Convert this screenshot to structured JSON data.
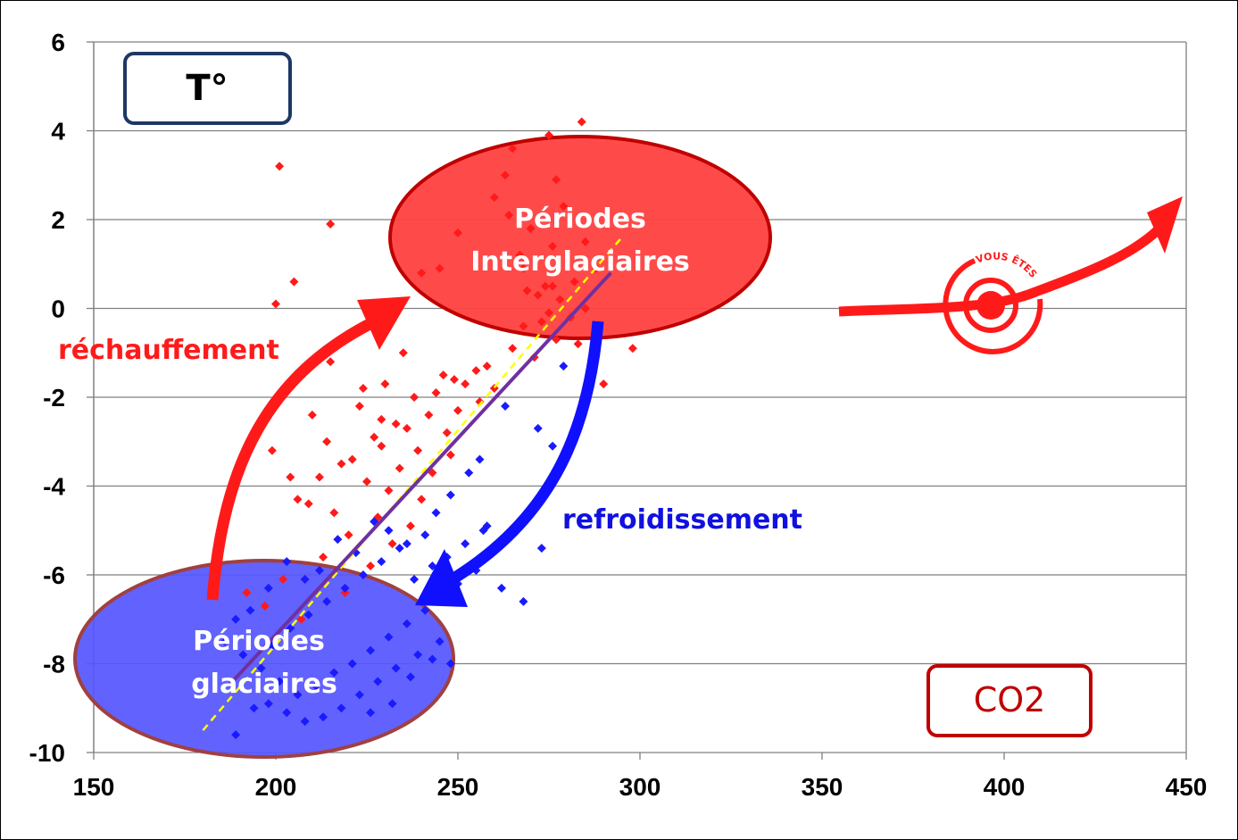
{
  "chart_data": {
    "type": "scatter",
    "xlim": [
      150,
      450
    ],
    "ylim": [
      -10,
      6
    ],
    "x_ticks": [
      "150",
      "200",
      "250",
      "300",
      "350",
      "400",
      "450"
    ],
    "y_ticks": [
      "6",
      "4",
      "2",
      "0",
      "-2",
      "-4",
      "-6",
      "-8",
      "-10"
    ],
    "grid": true,
    "colors": {
      "warming": "#ff1a1a",
      "cooling": "#1a1aff",
      "trend": "#7030a0",
      "fit": "#ffff00"
    },
    "series": [
      {
        "color": "#ff1a1a",
        "points": [
          [
            284,
            4.2
          ],
          [
            275,
            3.9
          ],
          [
            265,
            3.6
          ],
          [
            201,
            3.2
          ],
          [
            263,
            3.0
          ],
          [
            277,
            2.9
          ],
          [
            260,
            2.5
          ],
          [
            279,
            2.3
          ],
          [
            215,
            1.9
          ],
          [
            264,
            2.1
          ],
          [
            270,
            1.8
          ],
          [
            285,
            1.5
          ],
          [
            276,
            1.4
          ],
          [
            250,
            1.7
          ],
          [
            267,
            1.2
          ],
          [
            268,
            0.9
          ],
          [
            288,
            0.9
          ],
          [
            282,
            0.6
          ],
          [
            276,
            0.5
          ],
          [
            205,
            0.6
          ],
          [
            269,
            0.4
          ],
          [
            272,
            0.3
          ],
          [
            274,
            0.5
          ],
          [
            278,
            0.2
          ],
          [
            285,
            0.0
          ],
          [
            200,
            0.1
          ],
          [
            275,
            -0.1
          ],
          [
            281,
            -0.2
          ],
          [
            273,
            -0.3
          ],
          [
            268,
            -0.4
          ],
          [
            288,
            -0.6
          ],
          [
            298,
            -0.9
          ],
          [
            283,
            -0.8
          ],
          [
            277,
            -0.7
          ],
          [
            265,
            -0.9
          ],
          [
            271,
            -1.1
          ],
          [
            258,
            -1.3
          ],
          [
            255,
            -1.4
          ],
          [
            246,
            -1.5
          ],
          [
            249,
            -1.6
          ],
          [
            252,
            -1.7
          ],
          [
            290,
            -1.7
          ],
          [
            260,
            -1.8
          ],
          [
            244,
            -1.9
          ],
          [
            238,
            -2.0
          ],
          [
            256,
            -2.1
          ],
          [
            250,
            -2.3
          ],
          [
            242,
            -2.4
          ],
          [
            233,
            -2.6
          ],
          [
            236,
            -2.7
          ],
          [
            247,
            -2.8
          ],
          [
            227,
            -2.9
          ],
          [
            229,
            -3.1
          ],
          [
            239,
            -3.2
          ],
          [
            248,
            -3.3
          ],
          [
            221,
            -3.4
          ],
          [
            218,
            -3.5
          ],
          [
            234,
            -3.6
          ],
          [
            243,
            -3.7
          ],
          [
            212,
            -3.8
          ],
          [
            225,
            -3.9
          ],
          [
            231,
            -4.1
          ],
          [
            240,
            -4.3
          ],
          [
            209,
            -4.4
          ],
          [
            216,
            -4.6
          ],
          [
            228,
            -4.7
          ],
          [
            237,
            -4.9
          ],
          [
            195,
            -2.8
          ],
          [
            199,
            -3.2
          ],
          [
            204,
            -3.8
          ],
          [
            206,
            -4.3
          ],
          [
            220,
            -5.1
          ],
          [
            232,
            -5.3
          ],
          [
            213,
            -5.6
          ],
          [
            226,
            -5.8
          ],
          [
            202,
            -6.1
          ],
          [
            219,
            -6.4
          ],
          [
            197,
            -6.7
          ],
          [
            207,
            -7.0
          ],
          [
            192,
            -6.4
          ],
          [
            210,
            -2.4
          ],
          [
            214,
            -3.0
          ],
          [
            223,
            -2.2
          ],
          [
            230,
            -1.7
          ],
          [
            235,
            -1.0
          ],
          [
            240,
            0.8
          ],
          [
            245,
            0.9
          ],
          [
            215,
            -1.2
          ],
          [
            224,
            -1.8
          ],
          [
            229,
            -2.5
          ]
        ]
      },
      {
        "color": "#1a1aff",
        "points": [
          [
            279,
            -1.3
          ],
          [
            272,
            -2.7
          ],
          [
            276,
            -3.1
          ],
          [
            263,
            -2.2
          ],
          [
            256,
            -3.4
          ],
          [
            253,
            -3.7
          ],
          [
            248,
            -4.2
          ],
          [
            244,
            -4.6
          ],
          [
            258,
            -4.9
          ],
          [
            266,
            -5.0
          ],
          [
            273,
            -5.4
          ],
          [
            241,
            -5.1
          ],
          [
            236,
            -5.3
          ],
          [
            231,
            -5.0
          ],
          [
            227,
            -4.8
          ],
          [
            222,
            -5.5
          ],
          [
            217,
            -5.2
          ],
          [
            212,
            -5.9
          ],
          [
            208,
            -6.1
          ],
          [
            203,
            -5.7
          ],
          [
            198,
            -6.3
          ],
          [
            193,
            -6.8
          ],
          [
            189,
            -7.0
          ],
          [
            186,
            -7.5
          ],
          [
            191,
            -7.8
          ],
          [
            196,
            -8.1
          ],
          [
            201,
            -8.4
          ],
          [
            206,
            -8.7
          ],
          [
            211,
            -8.5
          ],
          [
            216,
            -8.2
          ],
          [
            221,
            -8.0
          ],
          [
            226,
            -7.7
          ],
          [
            231,
            -7.4
          ],
          [
            236,
            -7.1
          ],
          [
            241,
            -6.8
          ],
          [
            246,
            -6.5
          ],
          [
            250,
            -6.2
          ],
          [
            255,
            -5.9
          ],
          [
            262,
            -6.3
          ],
          [
            268,
            -6.6
          ],
          [
            245,
            -7.5
          ],
          [
            239,
            -7.8
          ],
          [
            233,
            -8.1
          ],
          [
            228,
            -8.4
          ],
          [
            223,
            -8.7
          ],
          [
            218,
            -9.0
          ],
          [
            213,
            -9.2
          ],
          [
            208,
            -9.3
          ],
          [
            203,
            -9.1
          ],
          [
            198,
            -8.9
          ],
          [
            194,
            -9.0
          ],
          [
            189,
            -9.6
          ],
          [
            199,
            -7.6
          ],
          [
            204,
            -7.2
          ],
          [
            209,
            -6.9
          ],
          [
            214,
            -6.6
          ],
          [
            219,
            -6.3
          ],
          [
            224,
            -6.0
          ],
          [
            229,
            -5.7
          ],
          [
            234,
            -5.4
          ],
          [
            238,
            -6.1
          ],
          [
            243,
            -5.8
          ],
          [
            247,
            -5.6
          ],
          [
            252,
            -5.3
          ],
          [
            257,
            -5.0
          ],
          [
            243,
            -7.9
          ],
          [
            248,
            -8.0
          ],
          [
            237,
            -8.3
          ],
          [
            232,
            -8.9
          ],
          [
            226,
            -9.1
          ]
        ]
      }
    ],
    "trend_line": [
      [
        187,
        -8.5
      ],
      [
        292,
        0.8
      ]
    ],
    "fit_line": [
      [
        180,
        -9.5
      ],
      [
        295,
        1.6
      ]
    ]
  },
  "labels": {
    "y_axis_box": "T°",
    "x_axis_box": "CO2",
    "interglacial_line1": "Périodes",
    "interglacial_line2": "Interglaciaires",
    "glacial_line1": "Périodes",
    "glacial_line2": "glaciaires",
    "warming": "réchauffement",
    "cooling": "refroidissement",
    "you_are_here": "VOUS ÊTES"
  }
}
